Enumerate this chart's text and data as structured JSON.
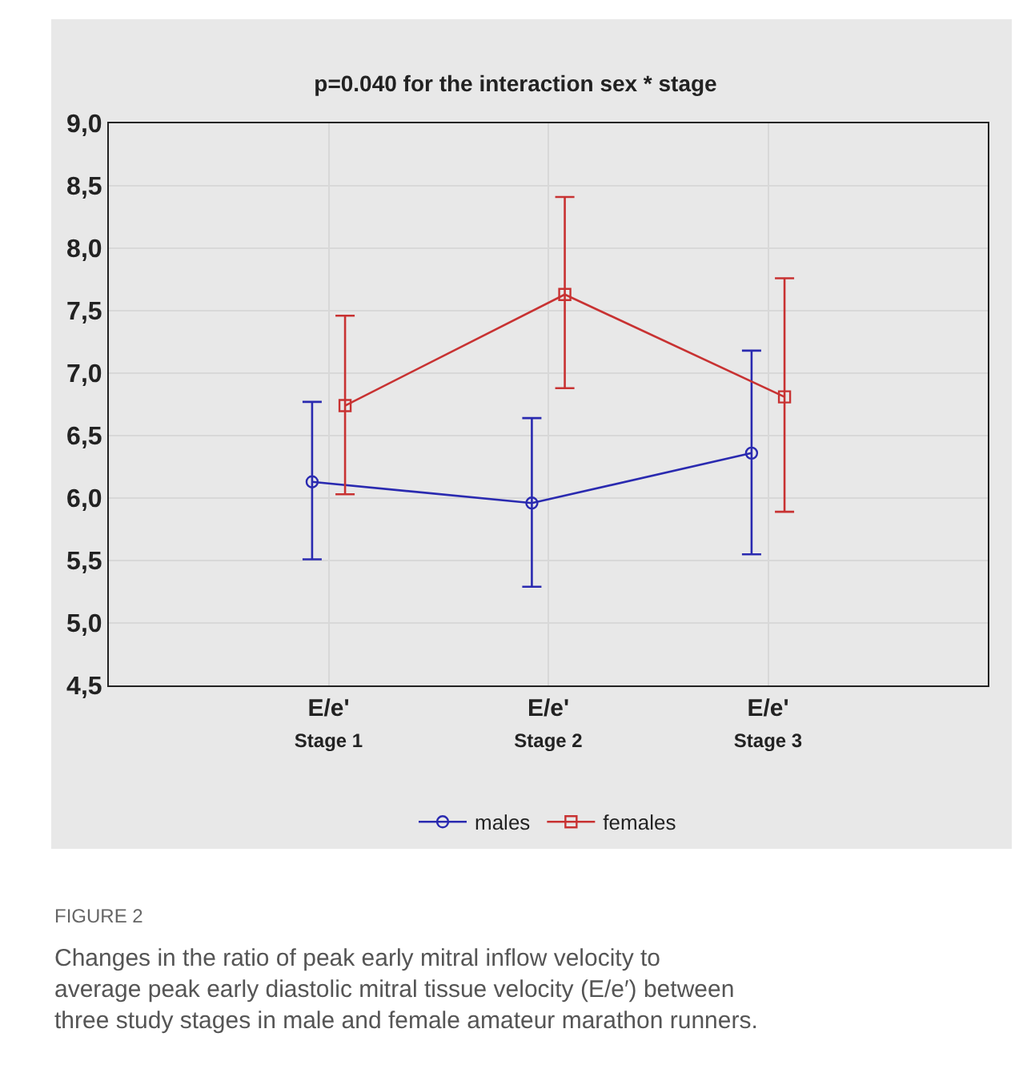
{
  "chart_data": {
    "type": "line",
    "title": "p=0.040 for the interaction sex * stage",
    "categories": [
      "E/e'\nStage 1",
      "E/e'\nStage 2",
      "E/e'\nStage 3"
    ],
    "series": [
      {
        "name": "males",
        "color": "#2a2ab0",
        "marker": "circle",
        "values": [
          6.13,
          5.96,
          6.36
        ],
        "errors": [
          [
            5.51,
            6.77
          ],
          [
            5.29,
            6.64
          ],
          [
            5.55,
            7.18
          ]
        ]
      },
      {
        "name": "females",
        "color": "#c83232",
        "marker": "square",
        "values": [
          6.74,
          7.63,
          6.81
        ],
        "errors": [
          [
            6.03,
            7.46
          ],
          [
            6.88,
            8.41
          ],
          [
            5.89,
            7.76
          ]
        ]
      }
    ],
    "ylim": [
      4.5,
      9.0
    ],
    "yticks": [
      {
        "value": 4.5,
        "label": "4,5"
      },
      {
        "value": 5.0,
        "label": "5,0"
      },
      {
        "value": 5.5,
        "label": "5,5"
      },
      {
        "value": 6.0,
        "label": "6,0"
      },
      {
        "value": 6.5,
        "label": "6,5"
      },
      {
        "value": 7.0,
        "label": "7,0"
      },
      {
        "value": 7.5,
        "label": "7,5"
      },
      {
        "value": 8.0,
        "label": "8,0"
      },
      {
        "value": 8.5,
        "label": "8,5"
      },
      {
        "value": 9.0,
        "label": "9,0"
      }
    ],
    "grid": true,
    "legend": "bottom",
    "line_style": "solid",
    "annotations": [
      "FIGURE 2",
      "Changes in the ratio of peak early mitral inflow velocity to average peak early diastolic mitral tissue velocity (E/e′) between three study stages in male and female amateur marathon runners."
    ]
  }
}
